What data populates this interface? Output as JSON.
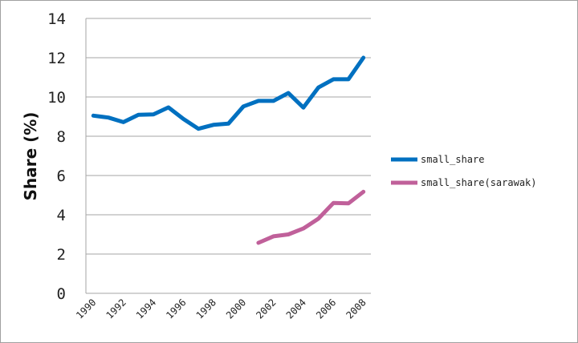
{
  "chart_data": {
    "type": "line",
    "title": "",
    "xlabel": "",
    "ylabel": "Share (%)",
    "ylim": [
      0,
      14
    ],
    "yticks": [
      0,
      2,
      4,
      6,
      8,
      10,
      12,
      14
    ],
    "x": [
      1990,
      1991,
      1992,
      1993,
      1994,
      1995,
      1996,
      1997,
      1998,
      1999,
      2000,
      2001,
      2002,
      2003,
      2004,
      2005,
      2006,
      2007,
      2008
    ],
    "xtick_labels": [
      "1990",
      "1992",
      "1994",
      "1996",
      "1998",
      "2000",
      "2002",
      "2004",
      "2006",
      "2008"
    ],
    "grid": "horizontal",
    "legend_position": "right",
    "series": [
      {
        "name": "small_share",
        "color": "#0070c0",
        "values": [
          9.05,
          8.95,
          8.72,
          9.09,
          9.11,
          9.47,
          8.88,
          8.38,
          8.58,
          8.64,
          9.52,
          9.8,
          9.8,
          10.2,
          9.46,
          10.48,
          10.9,
          10.9,
          12.0
        ]
      },
      {
        "name": "small_share(sarawak)",
        "color": "#c0609a",
        "values": [
          null,
          null,
          null,
          null,
          null,
          null,
          null,
          null,
          null,
          null,
          null,
          2.57,
          2.9,
          3.0,
          3.3,
          3.8,
          4.6,
          4.58,
          5.17
        ]
      }
    ]
  }
}
